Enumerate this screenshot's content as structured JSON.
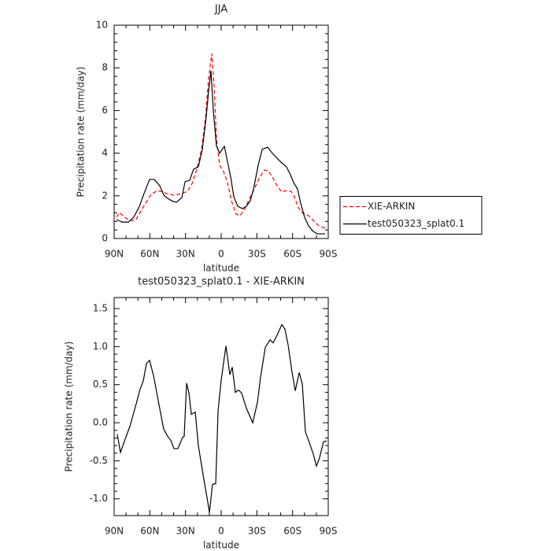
{
  "chart_data": [
    {
      "type": "line",
      "title": "JJA",
      "xlabel": "latitude",
      "ylabel": "Precipitation rate (mm/day)",
      "xlim": [
        90,
        -90
      ],
      "xticks": [
        {
          "value": 90,
          "label": "90N"
        },
        {
          "value": 60,
          "label": "60N"
        },
        {
          "value": 30,
          "label": "30N"
        },
        0,
        {
          "value": -30,
          "label": "30S"
        },
        {
          "value": -60,
          "label": "60S"
        },
        {
          "value": -90,
          "label": "90S"
        }
      ],
      "ylim": [
        0,
        10
      ],
      "yticks": [
        0,
        2,
        4,
        6,
        8,
        10
      ],
      "legend": "right",
      "series": [
        {
          "name": "XIE-ARKIN",
          "color": "#ff0000",
          "line_style": "dashed",
          "x": [
            88.0,
            85.4,
            81.4,
            76.8,
            72.1,
            68.2,
            63.5,
            58.9,
            53.6,
            48.9,
            44.3,
            39.0,
            33.7,
            28.4,
            24.4,
            20.5,
            16.5,
            13.2,
            10.6,
            7.9,
            5.9,
            4.0,
            1.3,
            -2.0,
            -5.3,
            -8.6,
            -12.6,
            -15.9,
            -19.9,
            -23.8,
            -27.8,
            -32.4,
            -36.4,
            -39.7,
            -43.0,
            -47.0,
            -51.0,
            -54.9,
            -58.9,
            -61.5,
            -64.9,
            -68.8,
            -73.5,
            -77.4,
            -82.1,
            -87.4
          ],
          "values": [
            1.0,
            1.22,
            1.0,
            0.85,
            0.85,
            1.22,
            1.66,
            2.07,
            2.25,
            2.18,
            2.07,
            2.03,
            2.1,
            2.21,
            2.58,
            3.25,
            4.17,
            5.65,
            7.49,
            8.67,
            7.12,
            4.72,
            3.43,
            3.14,
            2.62,
            1.77,
            1.14,
            1.07,
            1.4,
            1.88,
            2.32,
            2.88,
            3.21,
            3.17,
            2.88,
            2.47,
            2.18,
            2.25,
            2.21,
            1.96,
            1.44,
            1.18,
            1.07,
            0.85,
            0.59,
            0.48
          ]
        },
        {
          "name": "test050323_splat0.1",
          "color": "#000000",
          "line_style": "solid",
          "x": [
            88.0,
            83.4,
            78.1,
            73.5,
            68.8,
            64.9,
            60.2,
            56.2,
            51.6,
            48.2,
            44.9,
            41.7,
            37.7,
            33.0,
            30.4,
            26.5,
            23.2,
            19.2,
            15.9,
            12.6,
            10.6,
            8.6,
            6.6,
            4.0,
            1.3,
            -2.7,
            -5.3,
            -8.0,
            -10.6,
            -13.9,
            -17.9,
            -21.2,
            -24.5,
            -27.2,
            -31.1,
            -34.4,
            -39.0,
            -43.0,
            -47.0,
            -51.0,
            -54.9,
            -58.2,
            -60.9,
            -64.2,
            -66.8,
            -70.1,
            -73.5,
            -77.4,
            -80.7,
            -87.4
          ],
          "values": [
            0.89,
            0.77,
            0.77,
            1.0,
            1.5,
            2.1,
            2.77,
            2.77,
            2.47,
            2.03,
            1.88,
            1.77,
            1.7,
            1.92,
            2.66,
            2.73,
            3.25,
            3.36,
            4.17,
            5.7,
            6.9,
            7.86,
            6.0,
            4.35,
            4.0,
            4.32,
            3.6,
            2.88,
            1.96,
            1.51,
            1.4,
            1.51,
            1.77,
            2.32,
            3.43,
            4.17,
            4.28,
            4.0,
            3.76,
            3.54,
            3.36,
            2.99,
            2.62,
            2.32,
            1.66,
            1.0,
            0.59,
            0.33,
            0.22,
            0.22
          ]
        }
      ]
    },
    {
      "type": "line",
      "title": "test050323_splat0.1 - XIE-ARKIN",
      "xlabel": "latitude",
      "ylabel": "Precipitation rate (mm/day)",
      "xlim": [
        90,
        -90
      ],
      "xticks": [
        {
          "value": 90,
          "label": "90N"
        },
        {
          "value": 60,
          "label": "60N"
        },
        {
          "value": 30,
          "label": "30N"
        },
        0,
        {
          "value": -30,
          "label": "30S"
        },
        {
          "value": -60,
          "label": "60S"
        },
        {
          "value": -90,
          "label": "90S"
        }
      ],
      "ylim": [
        -1.22,
        1.645
      ],
      "yticks": [
        {
          "value": -1.0,
          "label": "-1.0"
        },
        -0.5,
        {
          "value": 0,
          "label": "0.0"
        },
        0.5,
        {
          "value": 1.0,
          "label": "1.0"
        },
        1.5
      ],
      "series": [
        {
          "color": "#000000",
          "line_style": "solid",
          "x": [
            87.4,
            84.7,
            80.1,
            76.8,
            72.1,
            68.2,
            65.5,
            62.8,
            60.2,
            56.9,
            52.3,
            48.4,
            45.0,
            42.4,
            39.7,
            36.4,
            32.4,
            31.1,
            29.1,
            27.1,
            25.1,
            21.8,
            19.2,
            14.6,
            11.2,
            9.9,
            7.3,
            4.6,
            2.6,
            0.0,
            -4.0,
            -7.3,
            -9.3,
            -11.9,
            -14.6,
            -17.2,
            -21.2,
            -26.5,
            -30.5,
            -33.1,
            -37.1,
            -41.1,
            -43.7,
            -47.0,
            -51.0,
            -53.6,
            -56.3,
            -59.6,
            -62.3,
            -65.6,
            -68.2,
            -70.8,
            -74.1,
            -77.4,
            -80.1,
            -82.7,
            -86.0,
            -88.7
          ],
          "values": [
            -0.15,
            -0.39,
            -0.19,
            -0.05,
            0.21,
            0.44,
            0.55,
            0.78,
            0.82,
            0.62,
            0.24,
            -0.08,
            -0.18,
            -0.23,
            -0.34,
            -0.34,
            -0.19,
            -0.18,
            0.52,
            0.39,
            0.11,
            0.14,
            -0.3,
            -0.74,
            -1.05,
            -1.18,
            -0.81,
            -0.8,
            0.16,
            0.56,
            1.01,
            0.63,
            0.73,
            0.4,
            0.43,
            0.39,
            0.19,
            0.0,
            0.27,
            0.6,
            0.99,
            1.09,
            1.05,
            1.15,
            1.29,
            1.23,
            1.02,
            0.66,
            0.42,
            0.66,
            0.51,
            -0.12,
            -0.26,
            -0.41,
            -0.57,
            -0.46,
            -0.25,
            -0.24
          ]
        }
      ]
    }
  ]
}
